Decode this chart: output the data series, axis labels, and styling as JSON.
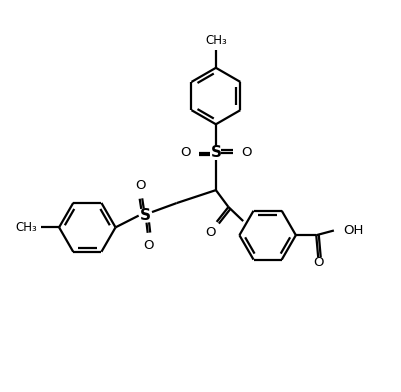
{
  "bg": "#ffffff",
  "lc": "#000000",
  "lw": 1.6,
  "figsize": [
    4.02,
    3.92
  ],
  "dpi": 100,
  "xlim": [
    0,
    10
  ],
  "ylim": [
    0,
    10
  ]
}
